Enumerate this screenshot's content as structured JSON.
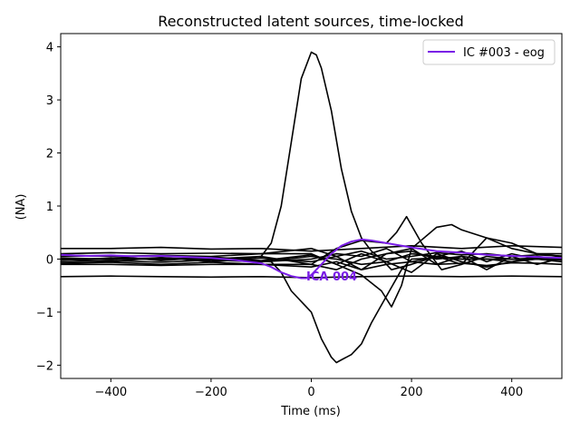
{
  "chart_data": {
    "type": "line",
    "title": "Reconstructed latent sources, time-locked",
    "xlabel": "Time (ms)",
    "ylabel": "(NA)",
    "xlim": [
      -500,
      500
    ],
    "ylim": [
      -2.25,
      4.25
    ],
    "xticks": [
      -400,
      -200,
      0,
      200,
      400
    ],
    "yticks": [
      -2,
      -1,
      0,
      1,
      2,
      3,
      4
    ],
    "xtick_labels": [
      "−400",
      "−200",
      "0",
      "200",
      "400"
    ],
    "ytick_labels": [
      "−2",
      "−1",
      "0",
      "1",
      "2",
      "3",
      "4"
    ],
    "grid": false,
    "legend": {
      "position": "top-right",
      "entries": [
        {
          "name": "IC #003 - eog",
          "color": "#7a1ee6"
        }
      ]
    },
    "annotation": {
      "text": "ICA 004",
      "x": -10,
      "y": -0.3,
      "color": "#7a1ee6"
    },
    "highlight_color": "#7a1ee6",
    "series_color": "#000000",
    "series": [
      {
        "name": "IC #003 - eog",
        "highlight": true,
        "x": [
          -500,
          -450,
          -400,
          -350,
          -300,
          -250,
          -200,
          -150,
          -100,
          -80,
          -60,
          -40,
          -20,
          -10,
          0,
          20,
          40,
          60,
          80,
          100,
          120,
          150,
          200,
          250,
          300,
          350,
          400,
          450,
          500
        ],
        "values": [
          0.08,
          0.06,
          0.07,
          0.05,
          0.06,
          0.04,
          0.02,
          -0.02,
          -0.08,
          -0.15,
          -0.25,
          -0.32,
          -0.36,
          -0.36,
          -0.3,
          -0.1,
          0.1,
          0.25,
          0.33,
          0.37,
          0.35,
          0.3,
          0.22,
          0.15,
          0.12,
          0.08,
          0.06,
          0.04,
          0.02
        ]
      },
      {
        "x": [
          -500,
          -300,
          -150,
          -100,
          -80,
          -60,
          -40,
          -20,
          0,
          10,
          20,
          40,
          60,
          80,
          100,
          120,
          140,
          160,
          200,
          250,
          300,
          400,
          500
        ],
        "values": [
          0.0,
          0.0,
          0.0,
          0.05,
          0.3,
          1.0,
          2.2,
          3.4,
          3.9,
          3.85,
          3.6,
          2.8,
          1.7,
          0.9,
          0.4,
          0.15,
          0.0,
          -0.2,
          -0.1,
          0.05,
          0.0,
          0.0,
          0.0
        ]
      },
      {
        "x": [
          -500,
          -300,
          -150,
          -80,
          -60,
          -40,
          -20,
          0,
          20,
          40,
          50,
          60,
          80,
          100,
          120,
          150,
          180,
          200,
          250,
          300,
          400,
          500
        ],
        "values": [
          0.0,
          0.0,
          0.0,
          -0.05,
          -0.25,
          -0.6,
          -0.8,
          -1.0,
          -1.5,
          -1.85,
          -1.95,
          -1.9,
          -1.8,
          -1.6,
          -1.2,
          -0.7,
          -0.2,
          0.0,
          0.02,
          0.0,
          0.0,
          0.0
        ]
      },
      {
        "x": [
          -500,
          -400,
          -300,
          -200,
          -100,
          0,
          100,
          200,
          300,
          400,
          500
        ],
        "values": [
          -0.33,
          -0.32,
          -0.33,
          -0.34,
          -0.33,
          -0.35,
          -0.33,
          -0.32,
          -0.33,
          -0.32,
          -0.33
        ]
      },
      {
        "x": [
          -500,
          -400,
          -300,
          -200,
          -100,
          0,
          100,
          200,
          300,
          400,
          500
        ],
        "values": [
          0.2,
          0.2,
          0.22,
          0.19,
          0.2,
          0.15,
          0.2,
          0.25,
          0.2,
          0.25,
          0.22
        ]
      },
      {
        "x": [
          -500,
          -400,
          -300,
          -200,
          -100,
          0,
          50,
          100,
          140,
          160,
          180,
          200,
          250,
          280,
          300,
          350,
          400,
          450,
          500
        ],
        "values": [
          0.1,
          0.12,
          0.1,
          0.11,
          0.1,
          0.1,
          -0.1,
          -0.3,
          -0.6,
          -0.9,
          -0.5,
          0.2,
          0.6,
          0.65,
          0.55,
          0.4,
          0.2,
          0.1,
          0.1
        ]
      },
      {
        "x": [
          -500,
          -400,
          -300,
          -200,
          -100,
          0,
          50,
          100,
          150,
          170,
          190,
          220,
          260,
          300,
          350,
          400,
          450,
          500
        ],
        "values": [
          -0.1,
          -0.1,
          -0.12,
          -0.1,
          -0.1,
          -0.1,
          0.2,
          0.35,
          0.3,
          0.5,
          0.8,
          0.3,
          -0.2,
          -0.1,
          0.4,
          0.3,
          0.1,
          0.05
        ]
      },
      {
        "x": [
          -500,
          -400,
          -300,
          -200,
          -100,
          0,
          50,
          100,
          150,
          200,
          250,
          300,
          350,
          400,
          450,
          500
        ],
        "values": [
          0.0,
          -0.05,
          0.03,
          -0.05,
          0.02,
          -0.05,
          0.05,
          -0.2,
          0.1,
          0.2,
          -0.1,
          0.05,
          -0.2,
          0.05,
          -0.1,
          0.02
        ]
      },
      {
        "x": [
          -500,
          -400,
          -300,
          -200,
          -100,
          0,
          50,
          100,
          150,
          200,
          250,
          300,
          350,
          400,
          450,
          500
        ],
        "values": [
          0.05,
          0.06,
          -0.03,
          0.04,
          -0.03,
          0.08,
          -0.1,
          0.1,
          -0.05,
          -0.25,
          0.1,
          -0.05,
          -0.15,
          -0.05,
          0.05,
          0.0
        ]
      },
      {
        "x": [
          -500,
          -400,
          -300,
          -200,
          -100,
          0,
          50,
          100,
          150,
          200,
          250,
          300,
          350,
          400,
          450,
          500
        ],
        "values": [
          -0.05,
          -0.03,
          -0.06,
          -0.02,
          -0.05,
          0.0,
          0.1,
          0.05,
          0.2,
          -0.05,
          0.05,
          0.15,
          -0.05,
          0.1,
          0.0,
          -0.05
        ]
      },
      {
        "x": [
          -500,
          -400,
          -300,
          -200,
          -100,
          0,
          50,
          100,
          150,
          200,
          250,
          300,
          350,
          400,
          450,
          500
        ],
        "values": [
          0.02,
          0.0,
          0.02,
          0.0,
          0.05,
          -0.1,
          -0.2,
          0.0,
          0.1,
          0.15,
          0.0,
          0.05,
          0.0,
          -0.05,
          0.0,
          0.05
        ]
      },
      {
        "x": [
          -500,
          -400,
          -300,
          -200,
          -100,
          0,
          50,
          100,
          150,
          200,
          250,
          300,
          350,
          400,
          450,
          500
        ],
        "values": [
          -0.02,
          0.02,
          0.0,
          0.02,
          -0.05,
          0.05,
          0.0,
          -0.1,
          -0.05,
          0.1,
          0.05,
          -0.1,
          0.05,
          0.0,
          0.02,
          -0.02
        ]
      },
      {
        "x": [
          -500,
          -400,
          -300,
          -200,
          -100,
          0,
          50,
          100,
          150,
          200,
          250,
          300,
          350,
          400,
          450,
          500
        ],
        "values": [
          0.08,
          0.05,
          0.07,
          0.05,
          0.1,
          0.2,
          0.05,
          0.15,
          0.0,
          0.05,
          0.12,
          0.08,
          0.1,
          0.05,
          0.08,
          0.06
        ]
      },
      {
        "x": [
          -500,
          -400,
          -300,
          -200,
          -100,
          0,
          50,
          100,
          150,
          200,
          250,
          300,
          350,
          400,
          450,
          500
        ],
        "values": [
          -0.08,
          -0.06,
          -0.1,
          -0.06,
          -0.1,
          -0.15,
          -0.05,
          -0.2,
          -0.1,
          -0.05,
          -0.1,
          -0.08,
          -0.12,
          -0.07,
          -0.08,
          -0.1
        ]
      }
    ]
  }
}
